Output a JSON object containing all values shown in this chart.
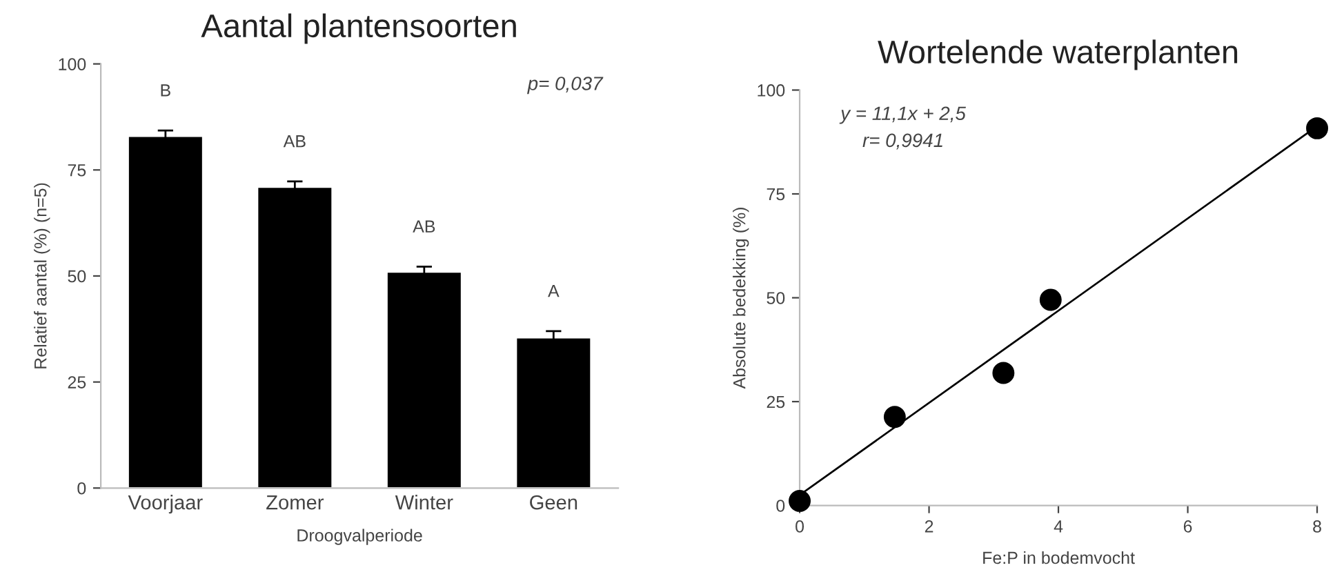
{
  "chart_data": [
    {
      "type": "bar",
      "title": "Aantal plantensoorten",
      "xlabel": "Droogvalperiode",
      "ylabel": "Relatief aantal (%) (n=5)",
      "categories": [
        "Voorjaar",
        "Zomer",
        "Winter",
        "Geen"
      ],
      "values": [
        83,
        71,
        51,
        35.5
      ],
      "errors": [
        1.3,
        1.3,
        1.2,
        1.5
      ],
      "color": "#000000",
      "ylim": [
        0,
        100
      ],
      "yticks": [
        0,
        25,
        50,
        75,
        100
      ],
      "grid": false,
      "legend": false,
      "annotations": [
        "B",
        "AB",
        "AB",
        "A",
        "p= 0,037"
      ]
    },
    {
      "type": "scatter",
      "title": "Wortelende waterplanten",
      "xlabel": "Fe:P in bodemvocht",
      "ylabel": "Absolute bedekking (%)",
      "xlim": [
        0,
        8
      ],
      "xticks": [
        0,
        2,
        4,
        6,
        8
      ],
      "ylim": [
        0,
        100
      ],
      "yticks": [
        0,
        25,
        50,
        75,
        100
      ],
      "grid": false,
      "legend": false,
      "series": [
        {
          "type": "scatter",
          "marker": "circle",
          "color": "#000000",
          "x": [
            0,
            1.47,
            3.15,
            3.88,
            8
          ],
          "values": [
            1.1,
            21.3,
            31.9,
            49.5,
            90.8
          ]
        },
        {
          "type": "line",
          "marker": "none",
          "color": "#000000",
          "x": [
            0,
            8
          ],
          "values": [
            2.5,
            91.3
          ]
        }
      ],
      "annotations": [
        "y = 11,1x + 2,5",
        "r= 0,9941"
      ]
    }
  ]
}
